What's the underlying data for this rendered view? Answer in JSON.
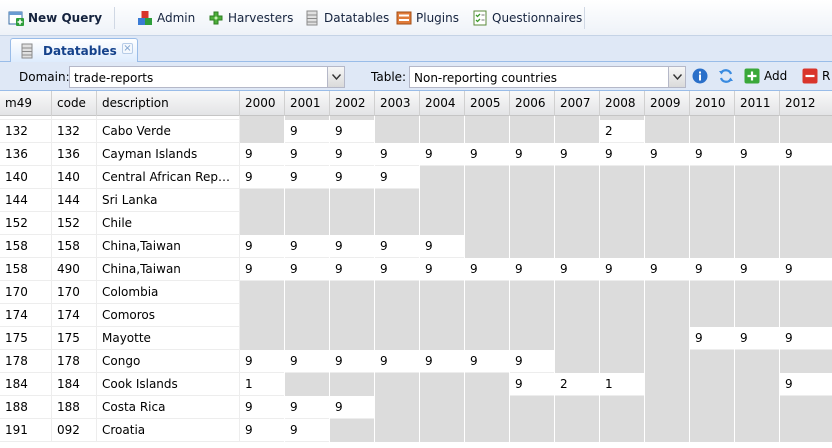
{
  "toolbar": {
    "new_query": "New Query",
    "admin": "Admin",
    "harvesters": "Harvesters",
    "datatables": "Datatables",
    "plugins": "Plugins",
    "questionnaires": "Questionnaires"
  },
  "tab": {
    "label": "Datatables",
    "close": "×"
  },
  "filter": {
    "domain_label": "Domain:",
    "domain_value": "trade-reports",
    "table_label": "Table:",
    "table_value": "Non-reporting countries",
    "add_label": "Add",
    "remove_label": "R"
  },
  "grid": {
    "columns": [
      "m49",
      "code",
      "description",
      "2000",
      "2001",
      "2002",
      "2003",
      "2004",
      "2005",
      "2006",
      "2007",
      "2008",
      "2009",
      "2010",
      "2011",
      "2012"
    ],
    "partial_row": {
      "m49": "",
      "code": "",
      "description": ""
    },
    "rows": [
      {
        "m49": "132",
        "code": "132",
        "description": "Cabo Verde",
        "years": [
          "",
          "9",
          "9",
          "",
          "",
          "",
          "",
          "",
          "2",
          "",
          "",
          "",
          ""
        ],
        "filled": [
          false,
          true,
          true,
          false,
          false,
          false,
          false,
          false,
          true,
          false,
          false,
          false,
          false
        ]
      },
      {
        "m49": "136",
        "code": "136",
        "description": "Cayman Islands",
        "years": [
          "9",
          "9",
          "9",
          "9",
          "9",
          "9",
          "9",
          "9",
          "9",
          "9",
          "9",
          "9",
          "9"
        ],
        "filled": [
          true,
          true,
          true,
          true,
          true,
          true,
          true,
          true,
          true,
          true,
          true,
          true,
          true
        ]
      },
      {
        "m49": "140",
        "code": "140",
        "description": "Central African Republic",
        "years": [
          "9",
          "9",
          "9",
          "9",
          "",
          "",
          "",
          "",
          "",
          "",
          "",
          "",
          ""
        ],
        "filled": [
          true,
          true,
          true,
          true,
          false,
          false,
          false,
          false,
          false,
          false,
          false,
          false,
          false
        ]
      },
      {
        "m49": "144",
        "code": "144",
        "description": "Sri Lanka",
        "years": [
          "",
          "",
          "",
          "",
          "",
          "",
          "",
          "",
          "",
          "",
          "",
          "",
          ""
        ],
        "filled": [
          false,
          false,
          false,
          false,
          false,
          false,
          false,
          false,
          false,
          false,
          false,
          false,
          false
        ]
      },
      {
        "m49": "152",
        "code": "152",
        "description": "Chile",
        "years": [
          "",
          "",
          "",
          "",
          "",
          "",
          "",
          "",
          "",
          "",
          "",
          "",
          ""
        ],
        "filled": [
          false,
          false,
          false,
          false,
          false,
          false,
          false,
          false,
          false,
          false,
          false,
          false,
          false
        ]
      },
      {
        "m49": "158",
        "code": "158",
        "description": "China,Taiwan",
        "years": [
          "9",
          "9",
          "9",
          "9",
          "9",
          "",
          "",
          "",
          "",
          "",
          "",
          "",
          ""
        ],
        "filled": [
          true,
          true,
          true,
          true,
          true,
          false,
          false,
          false,
          false,
          false,
          false,
          false,
          false
        ]
      },
      {
        "m49": "158",
        "code": "490",
        "description": "China,Taiwan",
        "years": [
          "9",
          "9",
          "9",
          "9",
          "9",
          "9",
          "9",
          "9",
          "9",
          "9",
          "9",
          "9",
          "9"
        ],
        "filled": [
          true,
          true,
          true,
          true,
          true,
          true,
          true,
          true,
          true,
          true,
          true,
          true,
          true
        ]
      },
      {
        "m49": "170",
        "code": "170",
        "description": "Colombia",
        "years": [
          "",
          "",
          "",
          "",
          "",
          "",
          "",
          "",
          "",
          "",
          "",
          "",
          ""
        ],
        "filled": [
          false,
          false,
          false,
          false,
          false,
          false,
          false,
          false,
          false,
          false,
          false,
          false,
          false
        ]
      },
      {
        "m49": "174",
        "code": "174",
        "description": "Comoros",
        "years": [
          "",
          "",
          "",
          "",
          "",
          "",
          "",
          "",
          "",
          "",
          "",
          "",
          ""
        ],
        "filled": [
          false,
          false,
          false,
          false,
          false,
          false,
          false,
          false,
          false,
          false,
          false,
          false,
          false
        ]
      },
      {
        "m49": "175",
        "code": "175",
        "description": "Mayotte",
        "years": [
          "",
          "",
          "",
          "",
          "",
          "",
          "",
          "",
          "",
          "",
          "9",
          "9",
          "9"
        ],
        "filled": [
          false,
          false,
          false,
          false,
          false,
          false,
          false,
          false,
          false,
          false,
          true,
          true,
          true
        ]
      },
      {
        "m49": "178",
        "code": "178",
        "description": "Congo",
        "years": [
          "9",
          "9",
          "9",
          "9",
          "9",
          "9",
          "9",
          "",
          "",
          "",
          "",
          "",
          ""
        ],
        "filled": [
          true,
          true,
          true,
          true,
          true,
          true,
          true,
          false,
          false,
          false,
          false,
          false,
          false
        ]
      },
      {
        "m49": "184",
        "code": "184",
        "description": "Cook Islands",
        "years": [
          "1",
          "",
          "",
          "",
          "",
          "",
          "9",
          "2",
          "1",
          "",
          "",
          "",
          "9"
        ],
        "filled": [
          true,
          false,
          false,
          false,
          false,
          false,
          true,
          true,
          true,
          false,
          false,
          false,
          true
        ]
      },
      {
        "m49": "188",
        "code": "188",
        "description": "Costa Rica",
        "years": [
          "9",
          "9",
          "9",
          "",
          "",
          "",
          "",
          "",
          "",
          "",
          "",
          "",
          ""
        ],
        "filled": [
          true,
          true,
          true,
          false,
          false,
          false,
          false,
          false,
          false,
          false,
          false,
          false,
          false
        ]
      },
      {
        "m49": "191",
        "code": "092",
        "description": "Croatia",
        "years": [
          "9",
          "9",
          "",
          "",
          "",
          "",
          "",
          "",
          "",
          "",
          "",
          "",
          ""
        ],
        "filled": [
          true,
          true,
          false,
          false,
          false,
          false,
          false,
          false,
          false,
          false,
          false,
          false,
          false
        ]
      }
    ]
  }
}
